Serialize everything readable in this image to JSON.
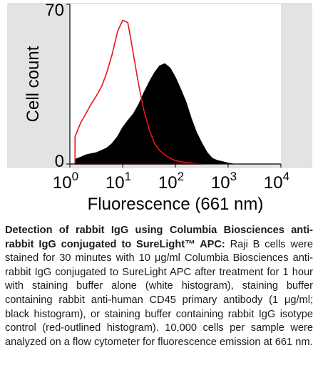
{
  "chart_data": {
    "type": "area",
    "xlabel": "Fluorescence (661 nm)",
    "ylabel": "Cell count",
    "xscale": "log",
    "xlim": [
      1,
      10000
    ],
    "ylim": [
      0,
      70
    ],
    "x_ticks": [
      {
        "base": "10",
        "exp": "0"
      },
      {
        "base": "10",
        "exp": "1"
      },
      {
        "base": "10",
        "exp": "2"
      },
      {
        "base": "10",
        "exp": "3"
      },
      {
        "base": "10",
        "exp": "4"
      }
    ],
    "y_ticks": [
      "0",
      "70"
    ],
    "grid": false,
    "series": [
      {
        "color": "#000000",
        "fill": "#000000",
        "x": [
          1.25,
          1.6,
          2,
          2.5,
          3.2,
          4,
          5,
          6.3,
          8,
          10,
          12.5,
          16,
          20,
          25,
          32,
          40,
          50,
          63,
          80,
          100,
          125,
          160,
          200,
          250,
          320,
          400,
          500,
          630,
          800,
          1000,
          1260
        ],
        "y": [
          2,
          3,
          4,
          4.5,
          5,
          6,
          7,
          9,
          12,
          16,
          19,
          22,
          26,
          31,
          36,
          40,
          43,
          44,
          42,
          38,
          33,
          27,
          20,
          14,
          9,
          5,
          2.5,
          1.5,
          1,
          0.4,
          0
        ]
      },
      {
        "color": "#e8141b",
        "fill": "#ffffff",
        "x": [
          1.25,
          1.6,
          2,
          2.5,
          3.2,
          4,
          5,
          6.3,
          8,
          10,
          12.5,
          14,
          16,
          20,
          25,
          32,
          40,
          50,
          63,
          80,
          100,
          125,
          160,
          200,
          250,
          320
        ],
        "y": [
          12,
          18,
          22,
          26,
          30,
          34,
          40,
          48,
          58,
          63,
          62,
          56,
          48,
          35,
          24,
          15,
          9,
          6,
          4,
          2.5,
          1.5,
          1,
          0.6,
          0.3,
          0.1,
          0
        ]
      }
    ]
  },
  "caption": {
    "lead": "Detection of rabbit IgG using Columbia Biosciences anti-rabbit IgG conjugated to SureLight™ APC:",
    "body": " Raji B cells were stained for 30 minutes with 10 μg/ml Columbia Biosciences anti-rabbit IgG conjugated to SureLight APC after treatment for 1 hour with staining buffer alone (white histogram), staining buffer containing rabbit anti-human CD45 primary antibody (1 μg/ml; black histogram), or staining buffer containing rabbit IgG isotype control (red-outlined histogram). 10,000 cells per sample were analyzed on a flow cytometer for fluorescence emission at 661 nm."
  }
}
